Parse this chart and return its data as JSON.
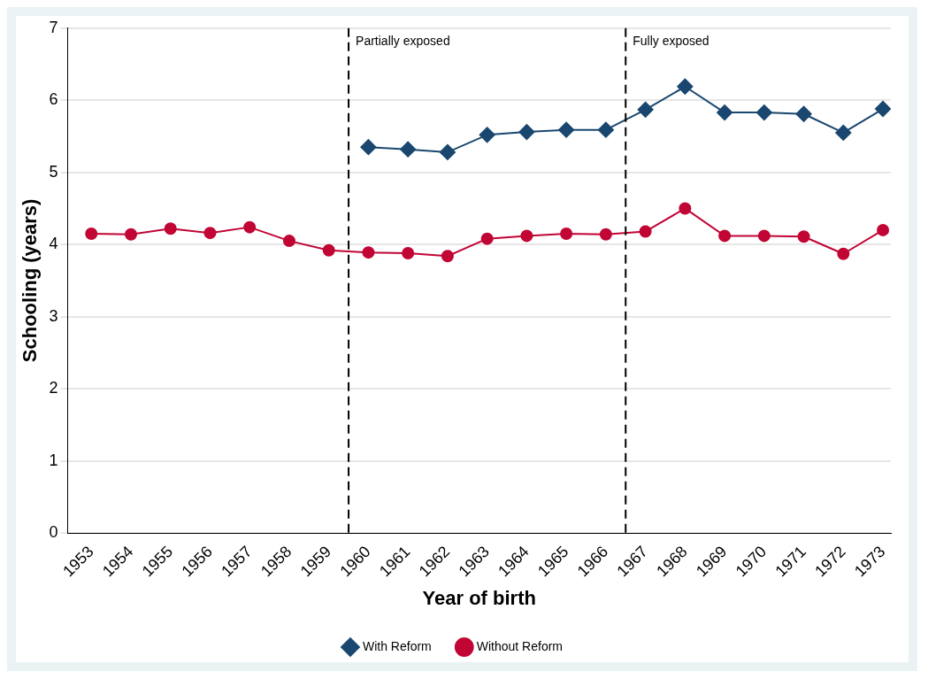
{
  "chart_data": {
    "type": "line",
    "xlabel": "Year of birth",
    "ylabel": "Schooling (years)",
    "x": [
      1953,
      1954,
      1955,
      1956,
      1957,
      1958,
      1959,
      1960,
      1961,
      1962,
      1963,
      1964,
      1965,
      1966,
      1967,
      1968,
      1969,
      1970,
      1971,
      1972,
      1973
    ],
    "series": [
      {
        "name": "With Reform",
        "color": "#1a476f",
        "marker": "diamond",
        "values": [
          null,
          null,
          null,
          null,
          null,
          null,
          null,
          5.35,
          5.32,
          5.28,
          5.52,
          5.56,
          5.59,
          5.59,
          5.87,
          6.19,
          5.83,
          5.83,
          5.81,
          5.55,
          5.88
        ]
      },
      {
        "name": "Without Reform",
        "color": "#c10534",
        "marker": "circle",
        "values": [
          4.15,
          4.14,
          4.22,
          4.16,
          4.24,
          4.05,
          3.92,
          3.89,
          3.88,
          3.84,
          4.08,
          4.12,
          4.15,
          4.14,
          4.18,
          4.5,
          4.12,
          4.12,
          4.11,
          3.87,
          4.2
        ]
      }
    ],
    "xlim": [
      1952.4,
      1973.2
    ],
    "xticks": [
      1953,
      1954,
      1955,
      1956,
      1957,
      1958,
      1959,
      1960,
      1961,
      1962,
      1963,
      1964,
      1965,
      1966,
      1967,
      1968,
      1969,
      1970,
      1971,
      1972,
      1973
    ],
    "ylim": [
      0,
      7
    ],
    "yticks": [
      0,
      1,
      2,
      3,
      4,
      5,
      6,
      7
    ],
    "ref_lines": [
      {
        "axis": "x",
        "value": 1959.5,
        "label": "Partially exposed",
        "color": "#000000",
        "line_style": "dashed"
      },
      {
        "axis": "x",
        "value": 1966.5,
        "label": "Fully exposed",
        "color": "#000000",
        "line_style": "dashed"
      }
    ],
    "grid": "y",
    "legend": "bottom"
  }
}
